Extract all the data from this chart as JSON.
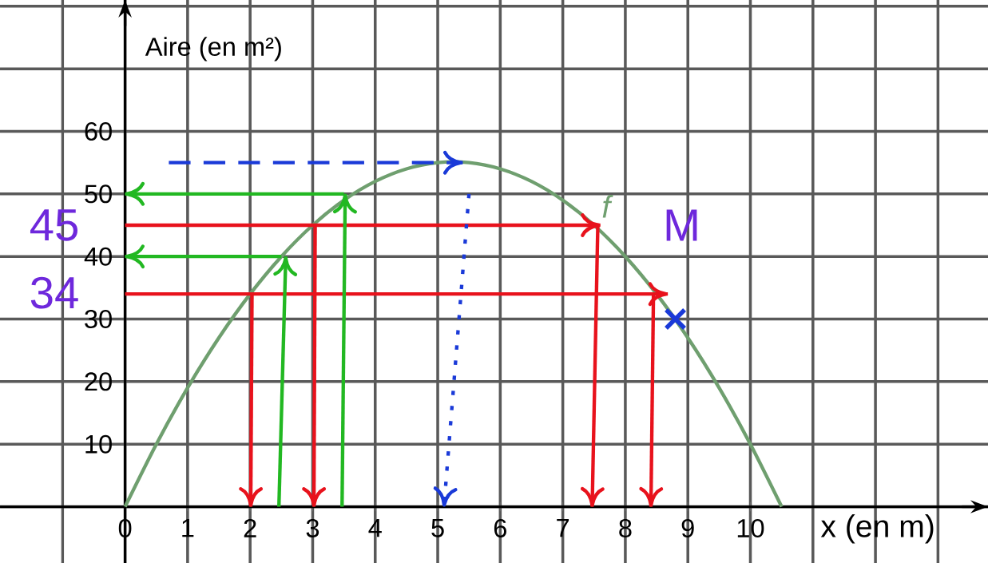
{
  "chart_data": {
    "type": "line",
    "xlabel": "x (en m)",
    "ylabel": "Aire (en m²)",
    "xlim": [
      -2,
      13.8
    ],
    "ylim": [
      -9,
      81
    ],
    "xticks": [
      {
        "value": -1,
        "label": null
      },
      0,
      1,
      2,
      3,
      4,
      5,
      6,
      7,
      8,
      9,
      10,
      {
        "value": 11,
        "label": null
      },
      {
        "value": 12,
        "label": null
      },
      {
        "value": 13,
        "label": null
      }
    ],
    "yticks": [
      {
        "value": 0,
        "label": null
      },
      10,
      20,
      30,
      40,
      50,
      60,
      {
        "value": 70,
        "label": null
      },
      {
        "value": 80,
        "label": null
      }
    ],
    "grid": true,
    "series": [
      {
        "name": "f",
        "color": "#6f9f6f",
        "x": [
          0,
          0.5,
          1,
          1.5,
          2,
          2.5,
          3,
          3.5,
          4,
          4.5,
          5,
          5.5,
          6,
          6.5,
          7,
          7.5,
          8,
          8.5,
          9,
          9.5,
          10,
          10.5
        ],
        "values": [
          0,
          10,
          19,
          27,
          34,
          40,
          45,
          49,
          52,
          54,
          55,
          55,
          54,
          52,
          49,
          45,
          40,
          34,
          27,
          19,
          10,
          0
        ]
      },
      {
        "color": "#e8121c",
        "x": [
          0,
          7.6
        ],
        "values": [
          45,
          45
        ]
      },
      {
        "color": "#e8121c",
        "x": [
          7.56,
          7.47
        ],
        "values": [
          45,
          0
        ]
      },
      {
        "color": "#e8121c",
        "x": [
          3.04,
          3.02
        ],
        "values": [
          45,
          0
        ]
      },
      {
        "color": "#e8121c",
        "x": [
          0,
          8.68
        ],
        "values": [
          34,
          34
        ]
      },
      {
        "color": "#e8121c",
        "x": [
          8.45,
          8.41
        ],
        "values": [
          34,
          0
        ]
      },
      {
        "color": "#e8121c",
        "x": [
          2.03,
          2.01
        ],
        "values": [
          34,
          0
        ]
      },
      {
        "color": "#22b822",
        "x": [
          3.47,
          3.52
        ],
        "values": [
          0,
          50
        ]
      },
      {
        "color": "#22b822",
        "x": [
          3.5,
          0
        ],
        "values": [
          50,
          50
        ]
      },
      {
        "color": "#22b822",
        "x": [
          2.46,
          2.57
        ],
        "values": [
          0,
          40
        ]
      },
      {
        "color": "#22b822",
        "x": [
          2.5,
          0
        ],
        "values": [
          40,
          40
        ]
      },
      {
        "color": "#1a3ad8",
        "line_style": "dashed",
        "x": [
          0.7,
          5.4
        ],
        "values": [
          55,
          55
        ]
      },
      {
        "color": "#1a3ad8",
        "line_style": "dotted",
        "x": [
          5.5,
          5.1
        ],
        "values": [
          50,
          0
        ]
      },
      {
        "type": "scatter",
        "marker": "cross",
        "color": "#1a3ad8",
        "x": [
          8.8
        ],
        "values": [
          30
        ]
      }
    ],
    "annotations": [
      "45",
      "34",
      "M"
    ]
  }
}
